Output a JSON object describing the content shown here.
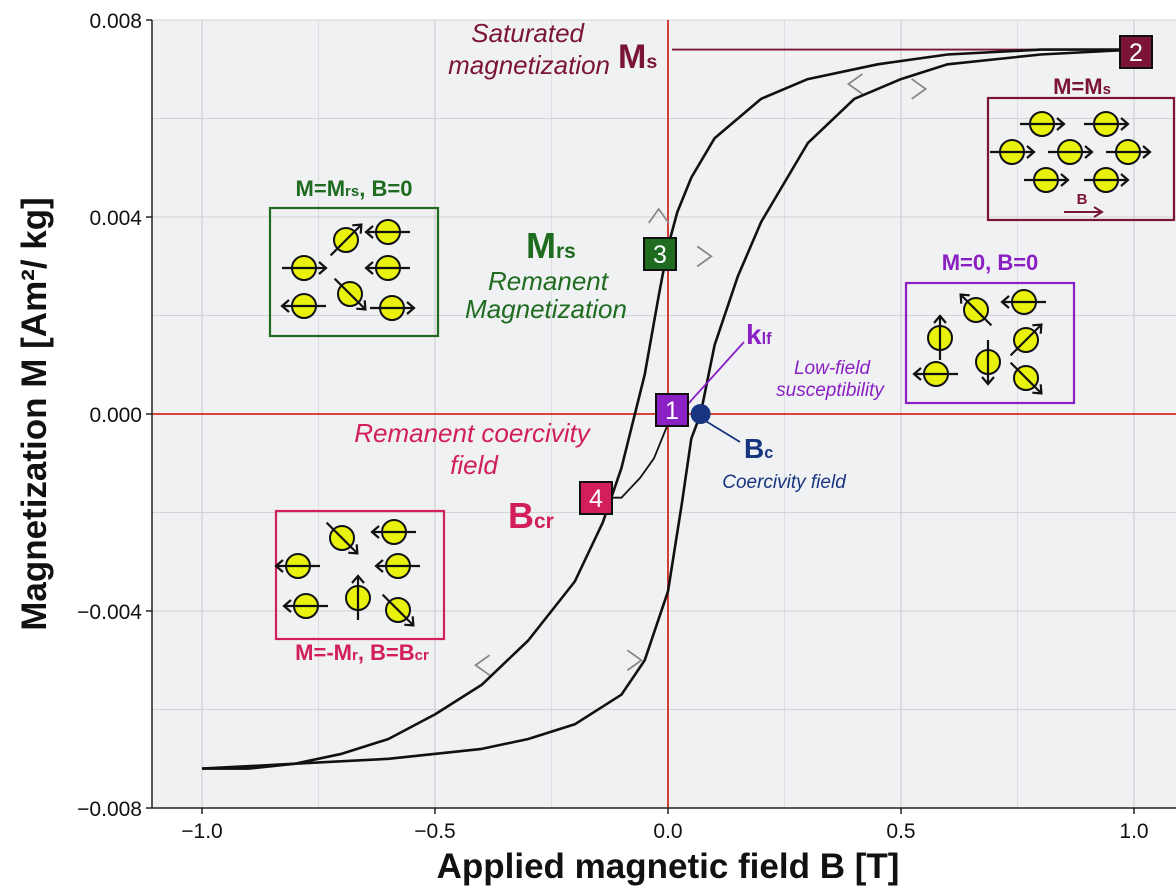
{
  "chart_data": {
    "type": "line",
    "title": "",
    "xlabel": "Applied magnetic field B [T]",
    "ylabel": "Magnetization M [Am²/ kg]",
    "xlim": [
      -1.1,
      1.1
    ],
    "ylim": [
      -0.008,
      0.008
    ],
    "x_ticks": [
      -1.0,
      -0.5,
      0.0,
      0.5,
      1.0
    ],
    "x_tick_labels": [
      "−1.0",
      "−0.5",
      "0.0",
      "0.5",
      "1.0"
    ],
    "y_ticks": [
      -0.008,
      -0.004,
      0.0,
      0.004,
      0.008
    ],
    "y_tick_labels": [
      "−0.008",
      "−0.004",
      "0.000",
      "0.004",
      "0.008"
    ],
    "grid": true,
    "series": [
      {
        "values": [
          [
            -1.0,
            -0.0072
          ],
          [
            -0.9,
            -0.0072
          ],
          [
            -0.8,
            -0.0071
          ],
          [
            -0.7,
            -0.0069
          ],
          [
            -0.6,
            -0.0066
          ],
          [
            -0.5,
            -0.0061
          ],
          [
            -0.4,
            -0.0055
          ],
          [
            -0.3,
            -0.0046
          ],
          [
            -0.2,
            -0.0034
          ],
          [
            -0.14,
            -0.0022
          ],
          [
            -0.1,
            -0.0011
          ],
          [
            -0.05,
            0.0008
          ],
          [
            -0.02,
            0.0024
          ],
          [
            0.0,
            0.0034
          ],
          [
            0.02,
            0.0041
          ],
          [
            0.05,
            0.0048
          ],
          [
            0.1,
            0.0056
          ],
          [
            0.2,
            0.0064
          ],
          [
            0.3,
            0.0068
          ],
          [
            0.45,
            0.0071
          ],
          [
            0.6,
            0.0073
          ],
          [
            0.8,
            0.0074
          ],
          [
            1.0,
            0.0074
          ]
        ]
      },
      {
        "values": [
          [
            -1.0,
            -0.0072
          ],
          [
            -0.8,
            -0.0071
          ],
          [
            -0.6,
            -0.007
          ],
          [
            -0.4,
            -0.0068
          ],
          [
            -0.3,
            -0.0066
          ],
          [
            -0.2,
            -0.0063
          ],
          [
            -0.1,
            -0.0057
          ],
          [
            -0.05,
            -0.005
          ],
          [
            0.0,
            -0.0036
          ],
          [
            0.03,
            -0.0018
          ],
          [
            0.05,
            -0.0005
          ],
          [
            0.07,
            0.0
          ],
          [
            0.1,
            0.0014
          ],
          [
            0.15,
            0.0028
          ],
          [
            0.2,
            0.0039
          ],
          [
            0.3,
            0.0055
          ],
          [
            0.4,
            0.0064
          ],
          [
            0.5,
            0.0068
          ],
          [
            0.6,
            0.0071
          ],
          [
            0.8,
            0.0073
          ],
          [
            1.0,
            0.0074
          ]
        ]
      },
      {
        "values": [
          [
            0.0,
            -0.0002
          ],
          [
            -0.03,
            -0.0009
          ],
          [
            -0.06,
            -0.0013
          ],
          [
            -0.1,
            -0.0017
          ],
          [
            -0.14,
            -0.0017
          ]
        ]
      }
    ],
    "annotations": {
      "saturated": {
        "label": "Saturated",
        "label2": "magnetization",
        "symbol": "M",
        "sub": "s"
      },
      "mrs": {
        "symbol": "M",
        "sub": "rs",
        "label": "Remanent",
        "label2": "Magnetization"
      },
      "klf": {
        "symbol": "k",
        "sub": "lf",
        "label": "Low-field",
        "label2": "susceptibility"
      },
      "bc": {
        "symbol": "B",
        "sub": "c",
        "label": "Coercivity field"
      },
      "bcr": {
        "symbol": "B",
        "sub": "cr",
        "label": "Remanent coercivity",
        "label2": "field"
      },
      "points": [
        {
          "id": "1",
          "x": 0.0,
          "y": 0.0,
          "color": "#8a1fc4"
        },
        {
          "id": "2",
          "x": 1.0,
          "y": 0.0074,
          "color": "#7a1535"
        },
        {
          "id": "3",
          "x": -0.02,
          "y": 0.0033,
          "color": "#1f6b1f"
        },
        {
          "id": "4",
          "x": -0.13,
          "y": -0.0017,
          "color": "#d21e5a"
        }
      ],
      "bc_point": {
        "x": 0.07,
        "y": 0.0,
        "color": "#173580"
      },
      "boxes": [
        {
          "key": "ms",
          "title": "M=M",
          "title_sub": "s",
          "color": "#7a1535",
          "field": "B"
        },
        {
          "key": "mrs",
          "title": "M=M",
          "title_sub": "rs",
          "title_tail": ", B=0",
          "color": "#1f6b1f"
        },
        {
          "key": "zero",
          "title": "M=0, B=0",
          "color": "#8a1fc4"
        },
        {
          "key": "mr",
          "title": "M=-M",
          "title_sub": "r",
          "title_tail": ", B=B",
          "title_sub2": "cr",
          "color": "#d21e5a"
        }
      ]
    }
  }
}
